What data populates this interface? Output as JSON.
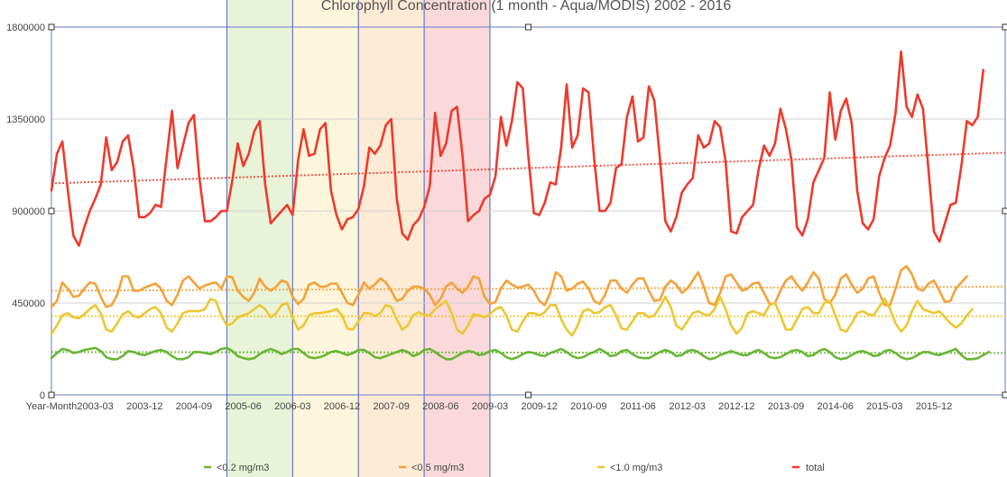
{
  "chart_data": {
    "type": "line",
    "title": "Chlorophyll Concentration (1 month - Aqua/MODIS) 2002 - 2016",
    "x_axis_title": "Year-Month",
    "x_tick_labels": [
      "2003-03",
      "2003-12",
      "2004-09",
      "2005-06",
      "2006-03",
      "2006-12",
      "2007-09",
      "2008-06",
      "2009-03",
      "2009-12",
      "2010-09",
      "2011-06",
      "2012-03",
      "2012-12",
      "2013-09",
      "2014-06",
      "2015-03",
      "2015-12"
    ],
    "y_tick_labels": [
      "1800000",
      "1350000",
      "900000",
      "450000",
      "0"
    ],
    "ylim": [
      0,
      1800000
    ],
    "x_start": "2002-07",
    "months": 174,
    "grid": true,
    "legend_position": "bottom",
    "highlight_bands": [
      {
        "start": 32,
        "end": 44,
        "color": "#e8f3d8"
      },
      {
        "start": 44,
        "end": 56,
        "color": "#fdf6dc"
      },
      {
        "start": 56,
        "end": 68,
        "color": "#fdebd6"
      },
      {
        "start": 68,
        "end": 80,
        "color": "#fbd9da"
      }
    ],
    "series": [
      {
        "name": "<0.2 mg/m3",
        "color": "#6ab536",
        "trend": [
          210000,
          205000
        ],
        "values": [
          180000,
          205000,
          225000,
          220000,
          205000,
          210000,
          220000,
          225000,
          230000,
          215000,
          185000,
          175000,
          175000,
          190000,
          215000,
          210000,
          200000,
          195000,
          205000,
          215000,
          220000,
          210000,
          190000,
          175000,
          175000,
          185000,
          210000,
          210000,
          205000,
          200000,
          210000,
          225000,
          230000,
          215000,
          190000,
          180000,
          175000,
          180000,
          200000,
          215000,
          225000,
          215000,
          200000,
          210000,
          225000,
          225000,
          205000,
          185000,
          180000,
          185000,
          195000,
          210000,
          215000,
          205000,
          195000,
          205000,
          220000,
          220000,
          205000,
          185000,
          180000,
          190000,
          200000,
          210000,
          220000,
          210000,
          190000,
          200000,
          220000,
          225000,
          210000,
          190000,
          175000,
          175000,
          190000,
          205000,
          215000,
          210000,
          195000,
          200000,
          215000,
          220000,
          205000,
          185000,
          175000,
          185000,
          200000,
          210000,
          205000,
          195000,
          190000,
          205000,
          215000,
          225000,
          210000,
          190000,
          180000,
          185000,
          200000,
          210000,
          225000,
          210000,
          190000,
          195000,
          215000,
          220000,
          200000,
          185000,
          180000,
          180000,
          195000,
          210000,
          220000,
          210000,
          190000,
          195000,
          215000,
          220000,
          210000,
          190000,
          175000,
          180000,
          195000,
          205000,
          215000,
          205000,
          195000,
          195000,
          210000,
          220000,
          205000,
          185000,
          180000,
          185000,
          200000,
          215000,
          220000,
          210000,
          190000,
          195000,
          215000,
          225000,
          210000,
          185000,
          175000,
          180000,
          195000,
          210000,
          215000,
          205000,
          190000,
          195000,
          215000,
          220000,
          205000,
          185000,
          175000,
          180000,
          195000,
          210000,
          210000,
          200000,
          195000,
          205000,
          215000,
          225000,
          195000,
          175000,
          175000,
          180000,
          195000,
          210000
        ],
        "legend_swatch_x": 226,
        "legend_text_x": 240
      },
      {
        "name": "<0.5 mg/m3",
        "color": "#f4a23a",
        "trend": [
          510000,
          530000
        ],
        "values": [
          430000,
          460000,
          550000,
          520000,
          480000,
          485000,
          520000,
          550000,
          545000,
          480000,
          430000,
          440000,
          490000,
          580000,
          580000,
          510000,
          510000,
          525000,
          535000,
          545000,
          520000,
          460000,
          440000,
          490000,
          560000,
          580000,
          550000,
          520000,
          535000,
          545000,
          550000,
          520000,
          580000,
          575000,
          510000,
          480000,
          460000,
          500000,
          570000,
          530000,
          510000,
          530000,
          560000,
          550000,
          480000,
          445000,
          470000,
          540000,
          550000,
          530000,
          530000,
          545000,
          545000,
          500000,
          450000,
          440000,
          490000,
          550000,
          520000,
          540000,
          570000,
          550000,
          510000,
          460000,
          470000,
          510000,
          530000,
          530000,
          520000,
          490000,
          440000,
          470000,
          530000,
          550000,
          520000,
          500000,
          530000,
          580000,
          570000,
          480000,
          445000,
          455000,
          520000,
          560000,
          540000,
          525000,
          530000,
          540000,
          510000,
          460000,
          440000,
          500000,
          600000,
          580000,
          510000,
          520000,
          545000,
          555000,
          520000,
          460000,
          445000,
          490000,
          560000,
          560000,
          520000,
          500000,
          540000,
          570000,
          570000,
          510000,
          460000,
          465000,
          530000,
          560000,
          540000,
          500000,
          520000,
          560000,
          600000,
          530000,
          450000,
          440000,
          500000,
          580000,
          590000,
          550000,
          510000,
          520000,
          545000,
          550000,
          500000,
          445000,
          450000,
          510000,
          560000,
          580000,
          540000,
          510000,
          550000,
          600000,
          570000,
          470000,
          450000,
          490000,
          570000,
          590000,
          540000,
          500000,
          520000,
          570000,
          580000,
          500000,
          440000,
          440000,
          520000,
          610000,
          630000,
          590000,
          520000,
          510000,
          545000,
          560000,
          510000,
          455000,
          460000,
          520000,
          550000,
          580000
        ],
        "legend_swatch_x": 442,
        "legend_text_x": 456
      },
      {
        "name": "<1.0 mg/m3",
        "color": "#ecc731",
        "trend": [
          385000,
          385000
        ],
        "values": [
          300000,
          340000,
          390000,
          400000,
          380000,
          375000,
          395000,
          420000,
          440000,
          400000,
          320000,
          310000,
          350000,
          395000,
          410000,
          385000,
          380000,
          400000,
          420000,
          430000,
          400000,
          330000,
          310000,
          350000,
          400000,
          410000,
          410000,
          410000,
          420000,
          470000,
          460000,
          390000,
          340000,
          350000,
          380000,
          390000,
          400000,
          420000,
          440000,
          420000,
          380000,
          400000,
          440000,
          450000,
          380000,
          320000,
          340000,
          390000,
          400000,
          400000,
          405000,
          410000,
          420000,
          390000,
          325000,
          320000,
          360000,
          400000,
          400000,
          385000,
          400000,
          440000,
          430000,
          370000,
          320000,
          340000,
          390000,
          405000,
          390000,
          390000,
          420000,
          440000,
          460000,
          400000,
          320000,
          300000,
          340000,
          395000,
          390000,
          380000,
          395000,
          420000,
          430000,
          390000,
          320000,
          310000,
          360000,
          400000,
          400000,
          390000,
          405000,
          440000,
          440000,
          370000,
          320000,
          290000,
          340000,
          410000,
          420000,
          400000,
          405000,
          430000,
          440000,
          390000,
          325000,
          320000,
          360000,
          400000,
          400000,
          380000,
          390000,
          430000,
          480000,
          430000,
          340000,
          320000,
          360000,
          400000,
          410000,
          395000,
          390000,
          420000,
          480000,
          420000,
          340000,
          300000,
          330000,
          400000,
          410000,
          400000,
          390000,
          440000,
          450000,
          390000,
          320000,
          320000,
          370000,
          420000,
          430000,
          400000,
          400000,
          450000,
          460000,
          390000,
          320000,
          310000,
          350000,
          400000,
          410000,
          395000,
          390000,
          430000,
          470000,
          420000,
          350000,
          310000,
          340000,
          410000,
          460000,
          420000,
          410000,
          400000,
          410000,
          380000,
          350000,
          330000,
          350000,
          390000,
          420000
        ],
        "legend_swatch_x": 662,
        "legend_text_x": 676
      },
      {
        "name": "total",
        "color": "#ee3a2c",
        "trend": [
          1035000,
          1185000
        ],
        "values": [
          1000000,
          1180000,
          1240000,
          1000000,
          780000,
          730000,
          820000,
          900000,
          960000,
          1030000,
          1260000,
          1100000,
          1140000,
          1240000,
          1270000,
          1110000,
          870000,
          870000,
          890000,
          930000,
          920000,
          1160000,
          1390000,
          1110000,
          1220000,
          1330000,
          1370000,
          1060000,
          850000,
          850000,
          870000,
          900000,
          900000,
          1050000,
          1230000,
          1120000,
          1180000,
          1290000,
          1340000,
          1030000,
          840000,
          870000,
          900000,
          930000,
          880000,
          1150000,
          1300000,
          1170000,
          1180000,
          1300000,
          1330000,
          1000000,
          880000,
          810000,
          860000,
          870000,
          910000,
          1020000,
          1210000,
          1180000,
          1220000,
          1320000,
          1350000,
          960000,
          790000,
          760000,
          830000,
          860000,
          920000,
          1020000,
          1380000,
          1170000,
          1230000,
          1390000,
          1410000,
          1170000,
          850000,
          880000,
          900000,
          960000,
          980000,
          1070000,
          1360000,
          1220000,
          1340000,
          1530000,
          1500000,
          1170000,
          890000,
          880000,
          940000,
          1040000,
          1030000,
          1210000,
          1520000,
          1210000,
          1270000,
          1500000,
          1480000,
          1160000,
          900000,
          900000,
          940000,
          1110000,
          1130000,
          1360000,
          1460000,
          1240000,
          1260000,
          1510000,
          1440000,
          1160000,
          850000,
          800000,
          870000,
          990000,
          1030000,
          1060000,
          1270000,
          1210000,
          1230000,
          1340000,
          1310000,
          1140000,
          800000,
          790000,
          870000,
          900000,
          930000,
          1100000,
          1220000,
          1170000,
          1230000,
          1400000,
          1300000,
          1150000,
          820000,
          780000,
          860000,
          1040000,
          1100000,
          1160000,
          1480000,
          1250000,
          1390000,
          1450000,
          1330000,
          1000000,
          840000,
          810000,
          860000,
          1070000,
          1160000,
          1220000,
          1380000,
          1680000,
          1410000,
          1360000,
          1470000,
          1400000,
          1100000,
          800000,
          750000,
          840000,
          930000,
          940000,
          1120000,
          1340000,
          1320000,
          1360000,
          1590000
        ],
        "legend_swatch_x": 878,
        "legend_text_x": 893
      }
    ]
  }
}
